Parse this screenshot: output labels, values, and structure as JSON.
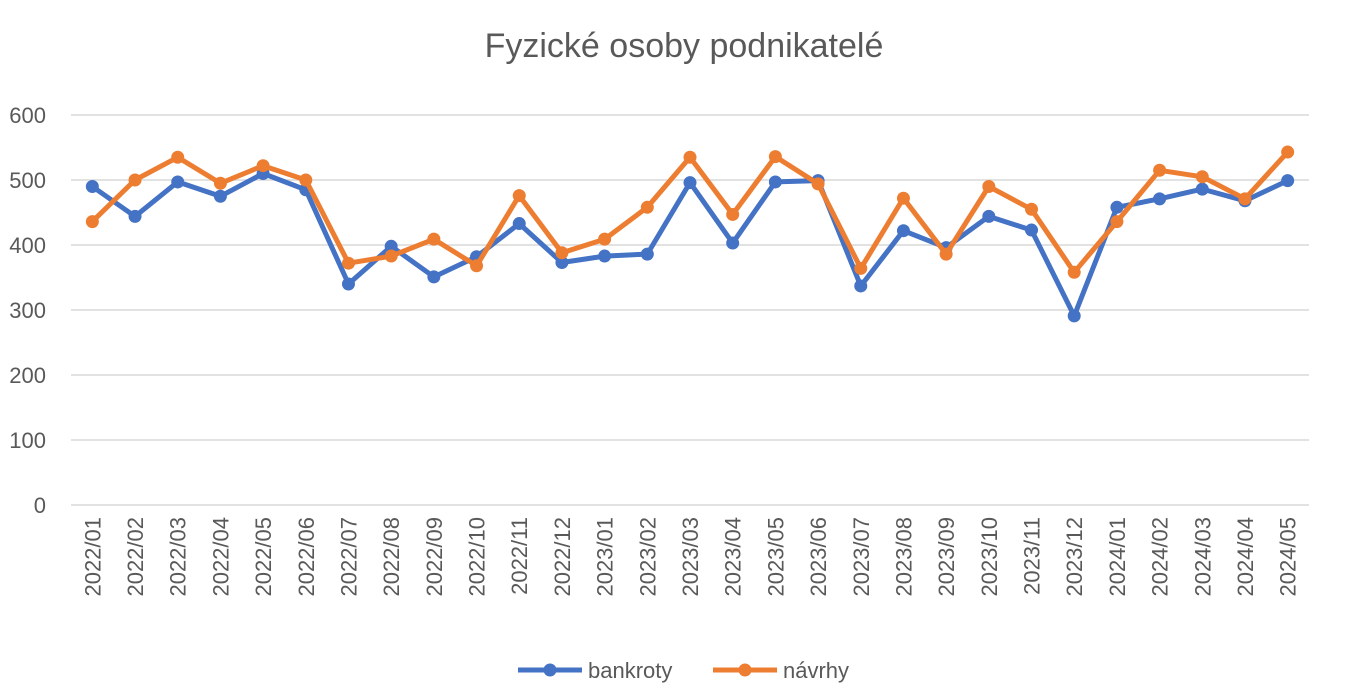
{
  "chart_data": {
    "type": "line",
    "title": "Fyzické osoby podnikatelé",
    "xlabel": "",
    "ylabel": "",
    "ylim": [
      0,
      600
    ],
    "yticks": [
      0,
      100,
      200,
      300,
      400,
      500,
      600
    ],
    "grid": true,
    "legend_position": "bottom",
    "categories": [
      "2022/01",
      "2022/02",
      "2022/03",
      "2022/04",
      "2022/05",
      "2022/06",
      "2022/07",
      "2022/08",
      "2022/09",
      "2022/10",
      "2022/11",
      "2022/12",
      "2023/01",
      "2023/02",
      "2023/03",
      "2023/04",
      "2023/05",
      "2023/06",
      "2023/07",
      "2023/08",
      "2023/09",
      "2023/10",
      "2023/11",
      "2023/12",
      "2024/01",
      "2024/02",
      "2024/03",
      "2024/04",
      "2024/05"
    ],
    "series": [
      {
        "name": "bankroty",
        "color": "#4472c4",
        "values": [
          490,
          444,
          497,
          475,
          510,
          485,
          340,
          398,
          351,
          382,
          433,
          373,
          383,
          386,
          496,
          403,
          497,
          499,
          337,
          422,
          396,
          444,
          423,
          291,
          458,
          471,
          486,
          468,
          499
        ]
      },
      {
        "name": "návrhy",
        "color": "#ed7d31",
        "values": [
          436,
          500,
          535,
          495,
          522,
          500,
          372,
          383,
          409,
          368,
          476,
          388,
          409,
          458,
          535,
          447,
          536,
          494,
          364,
          472,
          386,
          490,
          455,
          358,
          436,
          515,
          505,
          471,
          543
        ]
      }
    ]
  }
}
